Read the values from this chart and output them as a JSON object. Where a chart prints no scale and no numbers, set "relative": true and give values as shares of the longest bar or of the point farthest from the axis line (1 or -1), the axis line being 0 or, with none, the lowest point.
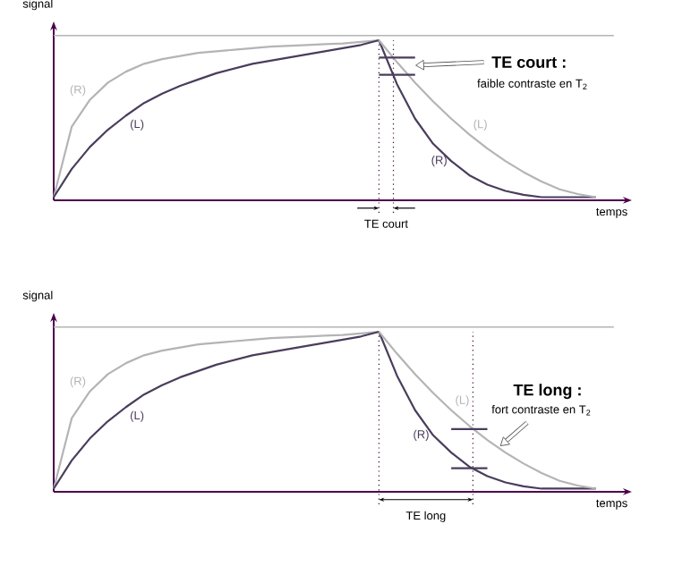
{
  "chart_data": [
    {
      "type": "line",
      "relative": true,
      "xlabel": "temps",
      "ylabel": "signal",
      "categories": [
        null,
        null,
        null,
        null,
        null,
        null,
        null,
        null,
        null,
        null,
        null,
        null,
        null,
        null,
        null,
        null,
        null,
        null,
        null,
        null,
        null,
        null,
        null,
        null,
        null,
        null,
        null,
        null,
        null,
        null,
        null
      ],
      "series": [
        {
          "name": "(R)",
          "color": "#b4b4b4",
          "values": [
            0,
            0.45,
            0.62,
            0.73,
            0.8,
            0.85,
            0.88,
            0.9,
            0.92,
            0.93,
            0.94,
            0.95,
            0.96,
            0.965,
            0.97,
            0.975,
            0.98,
            0.99,
            1,
            null,
            null,
            null,
            null,
            null,
            null,
            null,
            null,
            null,
            null,
            null,
            null
          ]
        },
        {
          "name": "(L)",
          "color": "#4a3d5c",
          "values": [
            0,
            0.18,
            0.32,
            0.43,
            0.52,
            0.6,
            0.66,
            0.71,
            0.75,
            0.79,
            0.82,
            0.85,
            0.87,
            0.89,
            0.91,
            0.93,
            0.95,
            0.97,
            1,
            null,
            null,
            null,
            null,
            null,
            null,
            null,
            null,
            null,
            null,
            null,
            null
          ]
        },
        {
          "name": "(R)",
          "color": "#4a3d5c",
          "values": [
            null,
            null,
            null,
            null,
            null,
            null,
            null,
            null,
            null,
            null,
            null,
            null,
            null,
            null,
            null,
            null,
            null,
            null,
            1,
            0.72,
            0.5,
            0.34,
            0.23,
            0.14,
            0.08,
            0.04,
            0.015,
            0,
            0,
            0,
            0
          ]
        },
        {
          "name": "(L)",
          "color": "#b4b4b4",
          "values": [
            null,
            null,
            null,
            null,
            null,
            null,
            null,
            null,
            null,
            null,
            null,
            null,
            null,
            null,
            null,
            null,
            null,
            null,
            1,
            0.86,
            0.73,
            0.61,
            0.5,
            0.4,
            0.31,
            0.23,
            0.16,
            0.1,
            0.05,
            0.02,
            0
          ]
        },
        {
          "color": "#4a3d5c",
          "values": [
            null,
            null,
            null,
            null,
            null,
            null,
            null,
            null,
            null,
            null,
            null,
            null,
            null,
            null,
            null,
            null,
            null,
            null,
            0.89,
            0.89,
            0.89,
            null,
            null,
            null,
            null,
            null,
            null,
            null,
            null,
            null,
            null
          ]
        },
        {
          "color": "#4a3d5c",
          "values": [
            null,
            null,
            null,
            null,
            null,
            null,
            null,
            null,
            null,
            null,
            null,
            null,
            null,
            null,
            null,
            null,
            null,
            null,
            0.78,
            0.78,
            0.78,
            null,
            null,
            null,
            null,
            null,
            null,
            null,
            null,
            null,
            null
          ]
        }
      ],
      "ref_lines": [
        {
          "axis": "y",
          "value": 1.03,
          "color": "#b4b4b4",
          "line_style": "solid"
        }
      ],
      "annotations": [
        "**TE court :**",
        "faible contraste en T$_{2}$",
        "TE court"
      ]
    },
    {
      "type": "line",
      "relative": true,
      "xlabel": "temps",
      "ylabel": "signal",
      "categories": [
        null,
        null,
        null,
        null,
        null,
        null,
        null,
        null,
        null,
        null,
        null,
        null,
        null,
        null,
        null,
        null,
        null,
        null,
        null,
        null,
        null,
        null,
        null,
        null,
        null,
        null,
        null,
        null,
        null,
        null,
        null
      ],
      "series": [
        {
          "name": "(R)",
          "color": "#b4b4b4",
          "values": [
            0,
            0.45,
            0.62,
            0.73,
            0.8,
            0.85,
            0.88,
            0.9,
            0.92,
            0.93,
            0.94,
            0.95,
            0.96,
            0.965,
            0.97,
            0.975,
            0.98,
            0.99,
            1,
            null,
            null,
            null,
            null,
            null,
            null,
            null,
            null,
            null,
            null,
            null,
            null
          ]
        },
        {
          "name": "(L)",
          "color": "#4a3d5c",
          "values": [
            0,
            0.18,
            0.32,
            0.43,
            0.52,
            0.6,
            0.66,
            0.71,
            0.75,
            0.79,
            0.82,
            0.85,
            0.87,
            0.89,
            0.91,
            0.93,
            0.95,
            0.97,
            1,
            null,
            null,
            null,
            null,
            null,
            null,
            null,
            null,
            null,
            null,
            null,
            null
          ]
        },
        {
          "name": "(R)",
          "color": "#4a3d5c",
          "values": [
            null,
            null,
            null,
            null,
            null,
            null,
            null,
            null,
            null,
            null,
            null,
            null,
            null,
            null,
            null,
            null,
            null,
            null,
            1,
            0.72,
            0.5,
            0.34,
            0.23,
            0.14,
            0.08,
            0.04,
            0.015,
            0,
            0,
            0,
            0
          ]
        },
        {
          "name": "(L)",
          "color": "#b4b4b4",
          "values": [
            null,
            null,
            null,
            null,
            null,
            null,
            null,
            null,
            null,
            null,
            null,
            null,
            null,
            null,
            null,
            null,
            null,
            null,
            1,
            0.86,
            0.73,
            0.61,
            0.5,
            0.4,
            0.31,
            0.23,
            0.16,
            0.1,
            0.05,
            0.02,
            0
          ]
        },
        {
          "color": "#4a3d5c",
          "values": [
            null,
            null,
            null,
            null,
            null,
            null,
            null,
            null,
            null,
            null,
            null,
            null,
            null,
            null,
            null,
            null,
            null,
            null,
            null,
            null,
            null,
            null,
            0.38,
            0.38,
            0.38,
            null,
            null,
            null,
            null,
            null,
            null
          ]
        },
        {
          "color": "#4a3d5c",
          "values": [
            null,
            null,
            null,
            null,
            null,
            null,
            null,
            null,
            null,
            null,
            null,
            null,
            null,
            null,
            null,
            null,
            null,
            null,
            null,
            null,
            null,
            null,
            0.13,
            0.13,
            0.13,
            null,
            null,
            null,
            null,
            null,
            null
          ]
        }
      ],
      "ref_lines": [
        {
          "axis": "y",
          "value": 1.03,
          "color": "#b4b4b4",
          "line_style": "solid"
        }
      ],
      "annotations": [
        "**TE long :**",
        "fort contraste en T$_{2}$",
        "TE long"
      ]
    }
  ]
}
